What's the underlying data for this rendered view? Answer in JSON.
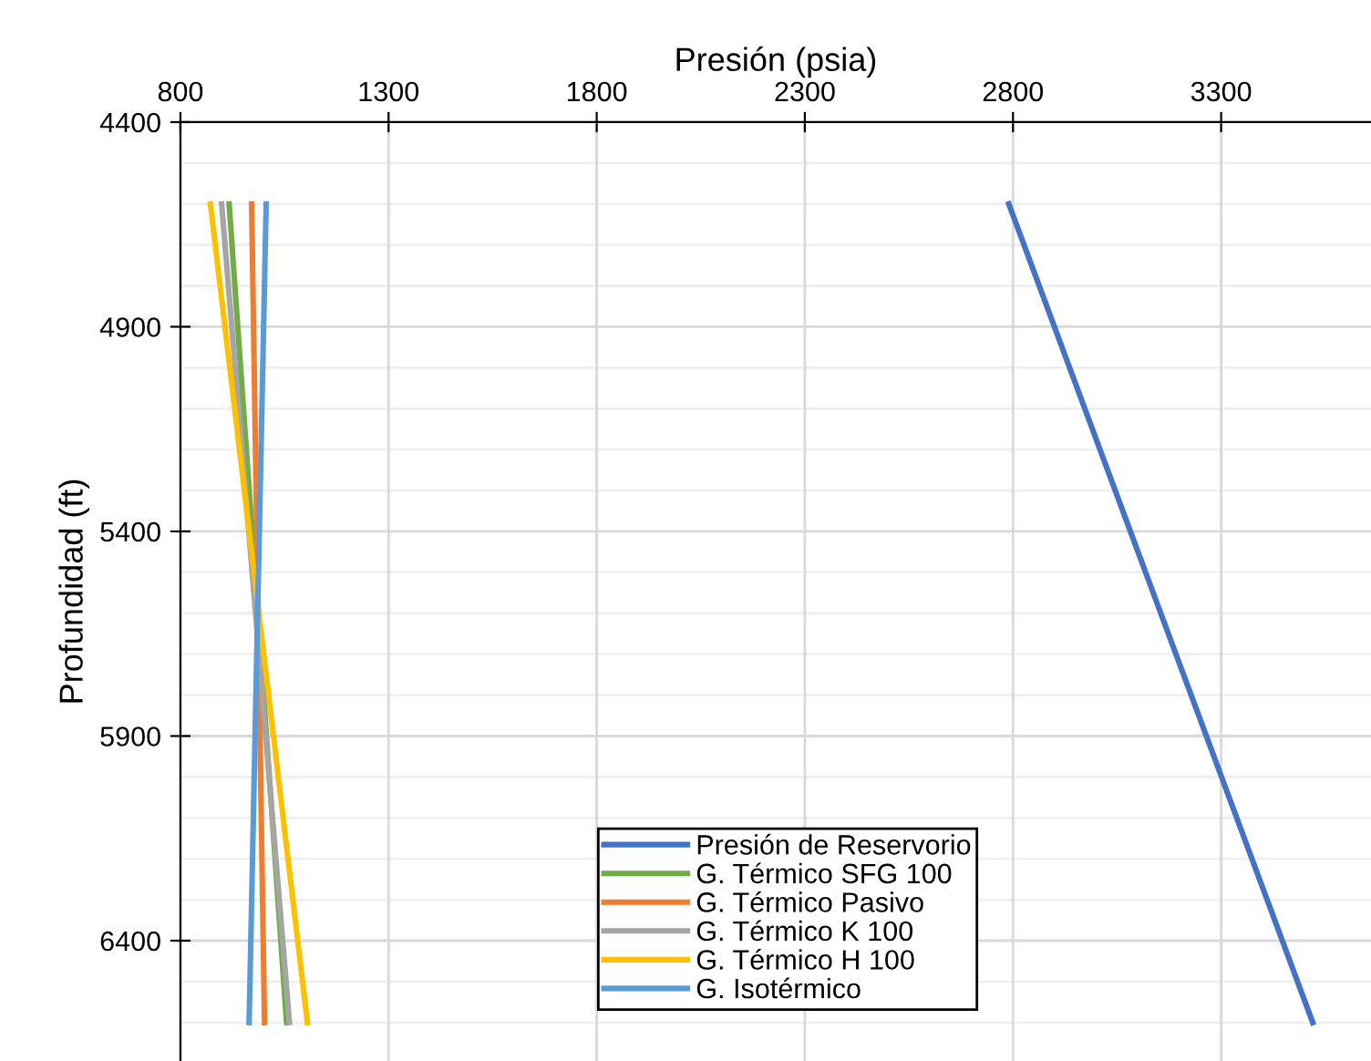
{
  "chart_data": {
    "type": "line",
    "xlabel": "Presión (psia)",
    "ylabel": "Profundidad (ft)",
    "xlim": [
      800,
      3660
    ],
    "xticks": [
      800,
      1300,
      1800,
      2300,
      2800,
      3300
    ],
    "ylim": [
      6694,
      4400
    ],
    "yticks": [
      4400,
      4900,
      5400,
      5900,
      6400
    ],
    "grid": true,
    "legend": "bottom",
    "line_style": "solid",
    "series": [
      {
        "name": "Presión de Reservorio",
        "color": "#4472c4",
        "x": [
          2790,
          3520
        ],
        "values": [
          4600,
          6600
        ]
      },
      {
        "name": "G. Térmico SFG 100",
        "color": "#70ad47",
        "x": [
          917,
          1055
        ],
        "values": [
          4600,
          6600
        ]
      },
      {
        "name": "G. Térmico Pasivo",
        "color": "#ed7d31",
        "x": [
          971,
          1002
        ],
        "values": [
          4600,
          6600
        ]
      },
      {
        "name": "G. Térmico K 100",
        "color": "#a5a5a5",
        "x": [
          899,
          1062
        ],
        "values": [
          4600,
          6600
        ]
      },
      {
        "name": "G. Térmico H 100",
        "color": "#ffc000",
        "x": [
          872,
          1105
        ],
        "values": [
          4600,
          6600
        ]
      },
      {
        "name": "G. Isotérmico",
        "color": "#5b9bd5",
        "x": [
          1006,
          965
        ],
        "values": [
          4600,
          6600
        ]
      }
    ]
  }
}
